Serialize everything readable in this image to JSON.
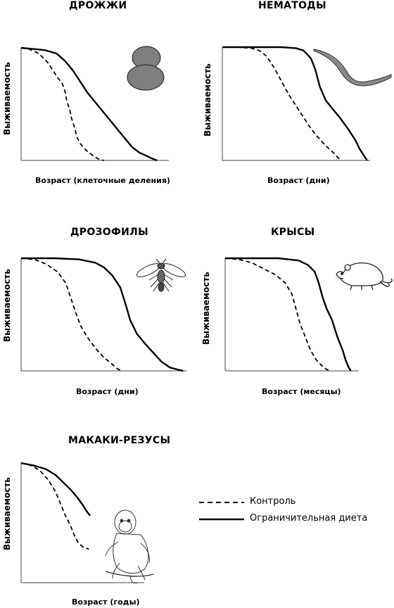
{
  "legend": {
    "control": "Контроль",
    "restricted": "Ограничительная диета"
  },
  "chart_data": [
    {
      "type": "line",
      "title": "ДРОЖЖИ",
      "xlabel": "Возраст (клеточные деления)",
      "ylabel": "Выживаемость",
      "icon": "yeast-icon",
      "series": [
        {
          "name": "Контроль",
          "style": "dashed",
          "x": [
            0,
            0.05,
            0.12,
            0.18,
            0.24,
            0.28,
            0.3,
            0.31,
            0.33,
            0.34,
            0.36,
            0.38,
            0.4,
            0.42,
            0.44,
            0.47,
            0.5,
            0.53,
            0.56
          ],
          "y": [
            1,
            0.99,
            0.95,
            0.87,
            0.75,
            0.68,
            0.6,
            0.52,
            0.45,
            0.38,
            0.3,
            0.2,
            0.15,
            0.12,
            0.09,
            0.06,
            0.03,
            0.01,
            0
          ]
        },
        {
          "name": "Ограничительная диета",
          "style": "solid",
          "x": [
            0,
            0.08,
            0.16,
            0.24,
            0.3,
            0.35,
            0.4,
            0.45,
            0.5,
            0.55,
            0.6,
            0.65,
            0.7,
            0.75,
            0.8,
            0.85,
            0.88,
            0.92
          ],
          "y": [
            1,
            0.99,
            0.98,
            0.95,
            0.88,
            0.8,
            0.7,
            0.6,
            0.52,
            0.44,
            0.36,
            0.28,
            0.2,
            0.12,
            0.07,
            0.04,
            0.02,
            0
          ]
        }
      ]
    },
    {
      "type": "line",
      "title": "НЕМАТОДЫ",
      "xlabel": "Возраст (дни)",
      "ylabel": "Выживаемость",
      "icon": "nematode-icon",
      "series": [
        {
          "name": "Контроль",
          "style": "dashed",
          "x": [
            0,
            0.1,
            0.2,
            0.25,
            0.3,
            0.35,
            0.4,
            0.45,
            0.5,
            0.55,
            0.6,
            0.65,
            0.7,
            0.75,
            0.78,
            0.8
          ],
          "y": [
            1,
            1,
            0.99,
            0.97,
            0.92,
            0.82,
            0.7,
            0.58,
            0.48,
            0.38,
            0.28,
            0.2,
            0.13,
            0.07,
            0.03,
            0
          ]
        },
        {
          "name": "Ограничительная диета",
          "style": "solid",
          "x": [
            0,
            0.2,
            0.4,
            0.5,
            0.55,
            0.6,
            0.63,
            0.66,
            0.7,
            0.75,
            0.8,
            0.85,
            0.9,
            0.93,
            0.96,
            0.98
          ],
          "y": [
            1,
            1,
            1,
            0.99,
            0.97,
            0.9,
            0.8,
            0.65,
            0.53,
            0.45,
            0.37,
            0.28,
            0.18,
            0.1,
            0.04,
            0
          ]
        }
      ]
    },
    {
      "type": "line",
      "title": "ДРОЗОФИЛЫ",
      "xlabel": "Возраст (дни)",
      "ylabel": "Выживаемость",
      "icon": "fly-icon",
      "series": [
        {
          "name": "Контроль",
          "style": "dashed",
          "x": [
            0,
            0.08,
            0.15,
            0.22,
            0.27,
            0.3,
            0.33,
            0.36,
            0.4,
            0.45,
            0.5,
            0.55,
            0.58,
            0.61
          ],
          "y": [
            1,
            0.99,
            0.95,
            0.88,
            0.78,
            0.65,
            0.52,
            0.4,
            0.3,
            0.2,
            0.12,
            0.06,
            0.02,
            0
          ]
        },
        {
          "name": "Ограничительная диета",
          "style": "solid",
          "x": [
            0,
            0.2,
            0.35,
            0.45,
            0.5,
            0.55,
            0.6,
            0.63,
            0.66,
            0.7,
            0.75,
            0.8,
            0.85,
            0.9,
            0.95,
            0.98
          ],
          "y": [
            1,
            1,
            0.99,
            0.96,
            0.92,
            0.85,
            0.74,
            0.6,
            0.45,
            0.33,
            0.24,
            0.16,
            0.08,
            0.03,
            0.01,
            0
          ]
        }
      ]
    },
    {
      "type": "line",
      "title": "КРЫСЫ",
      "xlabel": "Возраст (месяцы)",
      "ylabel": "Выживаемость",
      "icon": "rat-icon",
      "series": [
        {
          "name": "Контроль",
          "style": "dashed",
          "x": [
            0,
            0.1,
            0.2,
            0.3,
            0.38,
            0.45,
            0.5,
            0.53,
            0.56,
            0.6,
            0.64,
            0.68,
            0.72,
            0.75,
            0.78
          ],
          "y": [
            1,
            0.99,
            0.96,
            0.9,
            0.85,
            0.78,
            0.68,
            0.55,
            0.42,
            0.3,
            0.18,
            0.1,
            0.05,
            0.02,
            0
          ]
        },
        {
          "name": "Ограничительная диета",
          "style": "solid",
          "x": [
            0,
            0.2,
            0.4,
            0.55,
            0.62,
            0.67,
            0.7,
            0.73,
            0.76,
            0.8,
            0.84,
            0.88,
            0.9,
            0.92,
            0.94
          ],
          "y": [
            1,
            1,
            1,
            0.98,
            0.94,
            0.88,
            0.78,
            0.65,
            0.55,
            0.45,
            0.3,
            0.18,
            0.1,
            0.04,
            0
          ]
        }
      ]
    },
    {
      "type": "line",
      "title": "МАКАКИ-РЕЗУСЫ",
      "xlabel": "Возраст (годы)",
      "ylabel": "Выживаемость",
      "icon": "monkey-icon",
      "series": [
        {
          "name": "Контроль",
          "style": "dashed",
          "x": [
            0,
            0.08,
            0.15,
            0.22,
            0.28,
            0.32,
            0.36,
            0.4,
            0.43,
            0.46,
            0.5,
            0.55
          ],
          "y": [
            1,
            0.98,
            0.94,
            0.86,
            0.76,
            0.66,
            0.56,
            0.48,
            0.4,
            0.34,
            0.3,
            0.28
          ]
        },
        {
          "name": "Ограничительная диета",
          "style": "solid",
          "x": [
            0,
            0.1,
            0.2,
            0.28,
            0.34,
            0.4,
            0.45,
            0.5,
            0.53,
            0.56
          ],
          "y": [
            1,
            0.98,
            0.95,
            0.9,
            0.84,
            0.78,
            0.72,
            0.65,
            0.6,
            0.56
          ]
        }
      ]
    }
  ]
}
